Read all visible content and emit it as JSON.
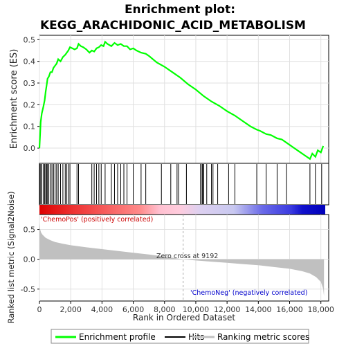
{
  "chart_data": {
    "type": "line",
    "title_line1": "Enrichment plot:",
    "title_line2": "KEGG_ARACHIDONIC_ACID_METABOLISM",
    "ylabel_top": "Enrichment score (ES)",
    "ylabel_bottom": "Ranked list metric (Signal2Noise)",
    "xlabel": "Rank in Ordered Dataset",
    "xlim": [
      0,
      18500
    ],
    "es_ylim": [
      -0.07,
      0.52
    ],
    "es_yticks": [
      "0.0",
      "0.1",
      "0.2",
      "0.3",
      "0.4",
      "0.5"
    ],
    "es_ytick_values": [
      0.0,
      0.1,
      0.2,
      0.3,
      0.4,
      0.5
    ],
    "metric_ylim": [
      -0.7,
      0.75
    ],
    "metric_yticks": [
      "0.5",
      "0.0",
      "-0.5"
    ],
    "metric_ytick_values": [
      0.5,
      0.0,
      -0.5
    ],
    "xticks": [
      "0",
      "2,000",
      "4,000",
      "6,000",
      "8,000",
      "10,000",
      "12,000",
      "14,000",
      "16,000",
      "18,000"
    ],
    "xtick_values": [
      0,
      2000,
      4000,
      6000,
      8000,
      10000,
      12000,
      14000,
      16000,
      18000
    ],
    "series": [
      {
        "name": "Enrichment profile",
        "color": "#00ff00",
        "x": [
          0,
          80,
          150,
          250,
          330,
          400,
          460,
          520,
          600,
          700,
          800,
          900,
          1000,
          1100,
          1200,
          1350,
          1500,
          1650,
          1750,
          1850,
          1950,
          2100,
          2250,
          2400,
          2500,
          2650,
          2800,
          3000,
          3200,
          3350,
          3500,
          3650,
          3800,
          3950,
          4100,
          4200,
          4350,
          4600,
          4800,
          5000,
          5200,
          5400,
          5600,
          5800,
          6000,
          6200,
          6500,
          6800,
          7000,
          7500,
          8000,
          8500,
          9000,
          9500,
          10000,
          10500,
          11000,
          11500,
          12000,
          12500,
          13000,
          13500,
          13900,
          14100,
          14500,
          14800,
          15200,
          15500,
          15800,
          16200,
          16600,
          17000,
          17300,
          17450,
          17650,
          17800,
          18000,
          18150
        ],
        "y": [
          0.0,
          0.12,
          0.16,
          0.19,
          0.22,
          0.26,
          0.29,
          0.32,
          0.33,
          0.35,
          0.35,
          0.37,
          0.38,
          0.39,
          0.41,
          0.4,
          0.42,
          0.43,
          0.44,
          0.45,
          0.465,
          0.46,
          0.455,
          0.46,
          0.48,
          0.47,
          0.465,
          0.455,
          0.44,
          0.45,
          0.445,
          0.46,
          0.465,
          0.475,
          0.47,
          0.49,
          0.48,
          0.47,
          0.485,
          0.475,
          0.48,
          0.47,
          0.47,
          0.455,
          0.46,
          0.45,
          0.44,
          0.435,
          0.425,
          0.395,
          0.375,
          0.35,
          0.325,
          0.295,
          0.27,
          0.24,
          0.215,
          0.195,
          0.17,
          0.15,
          0.125,
          0.1,
          0.085,
          0.08,
          0.065,
          0.06,
          0.045,
          0.04,
          0.025,
          0.005,
          -0.015,
          -0.035,
          -0.05,
          -0.025,
          -0.04,
          -0.01,
          -0.02,
          0.01
        ]
      },
      {
        "name": "Ranking metric scores",
        "color": "#c0c0c0",
        "x": [
          0,
          50,
          100,
          200,
          400,
          700,
          1000,
          1500,
          2000,
          3000,
          4000,
          5000,
          6000,
          7000,
          8000,
          9192,
          10000,
          11000,
          12000,
          13000,
          14000,
          15000,
          16000,
          16800,
          17300,
          17700,
          18000,
          18150,
          18200
        ],
        "y": [
          0.62,
          0.5,
          0.45,
          0.41,
          0.36,
          0.32,
          0.29,
          0.26,
          0.235,
          0.2,
          0.17,
          0.14,
          0.11,
          0.08,
          0.045,
          0.0,
          -0.02,
          -0.04,
          -0.06,
          -0.08,
          -0.1,
          -0.13,
          -0.16,
          -0.2,
          -0.24,
          -0.3,
          -0.38,
          -0.5,
          -0.62
        ]
      }
    ],
    "hits": [
      20,
      80,
      150,
      250,
      330,
      400,
      460,
      520,
      600,
      700,
      800,
      900,
      1000,
      1100,
      1200,
      1350,
      1500,
      1650,
      1750,
      1850,
      1950,
      2400,
      2500,
      3350,
      3500,
      3650,
      3800,
      3950,
      4200,
      4600,
      4800,
      5000,
      5200,
      5400,
      5600,
      6000,
      6500,
      6800,
      7800,
      8400,
      8800,
      8900,
      9400,
      10300,
      10400,
      10450,
      10500,
      10700,
      11000,
      11100,
      11400,
      12100,
      12500,
      13900,
      14500,
      15200,
      15800,
      17300,
      17650,
      18050
    ],
    "zero_cross_label": "Zero cross at 9192",
    "zero_cross": 9192,
    "pos_label": "'ChemoPos' (positively correlated)",
    "neg_label": "'ChemoNeg' (negatively correlated)",
    "pos_color": "#dd0000",
    "neg_color": "#0000cc",
    "legend": [
      {
        "label": "Enrichment profile",
        "color": "#00ff00"
      },
      {
        "label": "Hits",
        "color": "#000000"
      },
      {
        "label": "Ranking metric scores",
        "color": "#c0c0c0"
      }
    ],
    "grid": true,
    "legend_position": "bottom"
  }
}
